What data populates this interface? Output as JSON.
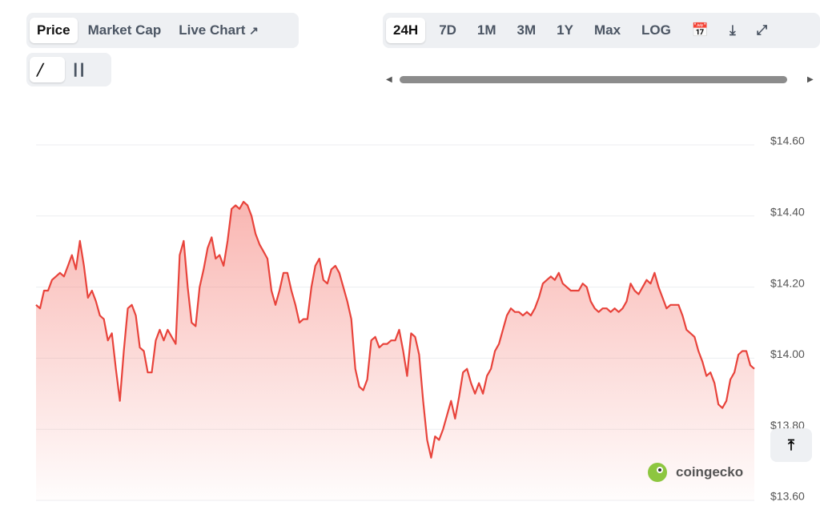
{
  "tabs": [
    "Price",
    "Market Cap",
    "Live Chart"
  ],
  "ranges": [
    "24H",
    "7D",
    "1M",
    "3M",
    "1Y",
    "Max",
    "LOG"
  ],
  "watermark": "coingecko",
  "chart_data": {
    "type": "line",
    "series": [
      {
        "color": "#e8433b",
        "values": [
          14.15,
          14.14,
          14.19,
          14.19,
          14.22,
          14.23,
          14.24,
          14.23,
          14.26,
          14.29,
          14.25,
          14.33,
          14.26,
          14.17,
          14.19,
          14.16,
          14.12,
          14.11,
          14.05,
          14.07,
          13.97,
          13.88,
          14.02,
          14.14,
          14.15,
          14.12,
          14.03,
          14.02,
          13.96,
          13.96,
          14.05,
          14.08,
          14.05,
          14.08,
          14.06,
          14.04,
          14.29,
          14.33,
          14.2,
          14.1,
          14.09,
          14.2,
          14.25,
          14.31,
          14.34,
          14.28,
          14.29,
          14.26,
          14.33,
          14.42,
          14.43,
          14.42,
          14.44,
          14.43,
          14.4,
          14.35,
          14.32,
          14.3,
          14.28,
          14.19,
          14.15,
          14.19,
          14.24,
          14.24,
          14.19,
          14.15,
          14.1,
          14.11,
          14.11,
          14.2,
          14.26,
          14.28,
          14.22,
          14.21,
          14.25,
          14.26,
          14.24,
          14.2,
          14.16,
          14.11,
          13.97,
          13.92,
          13.91,
          13.94,
          14.05,
          14.06,
          14.03,
          14.04,
          14.04,
          14.05,
          14.05,
          14.08,
          14.02,
          13.95,
          14.07,
          14.06,
          14.01,
          13.88,
          13.77,
          13.72,
          13.78,
          13.77,
          13.8,
          13.84,
          13.88,
          13.83,
          13.89,
          13.96,
          13.97,
          13.93,
          13.9,
          13.93,
          13.9,
          13.95,
          13.97,
          14.02,
          14.04,
          14.08,
          14.12,
          14.14,
          14.13,
          14.13,
          14.12,
          14.13,
          14.12,
          14.14,
          14.17,
          14.21,
          14.22,
          14.23,
          14.22,
          14.24,
          14.21,
          14.2,
          14.19,
          14.19,
          14.19,
          14.21,
          14.2,
          14.16,
          14.14,
          14.13,
          14.14,
          14.14,
          14.13,
          14.14,
          14.13,
          14.14,
          14.16,
          14.21,
          14.19,
          14.18,
          14.2,
          14.22,
          14.21,
          14.24,
          14.2,
          14.17,
          14.14,
          14.15,
          14.15,
          14.15,
          14.12,
          14.08,
          14.07,
          14.06,
          14.02,
          13.99,
          13.95,
          13.96,
          13.93,
          13.87,
          13.86,
          13.88,
          13.94,
          13.96,
          14.01,
          14.02,
          14.02,
          13.98,
          13.97
        ]
      }
    ],
    "ylim": [
      13.6,
      14.6
    ],
    "yticks": [
      {
        "value": 13.6,
        "label": "$13.60"
      },
      {
        "value": 13.8,
        "label": "$13.80"
      },
      {
        "value": 14.0,
        "label": "$14.00"
      },
      {
        "value": 14.2,
        "label": "$14.20"
      },
      {
        "value": 14.4,
        "label": "$14.40"
      },
      {
        "value": 14.6,
        "label": "$14.60"
      }
    ],
    "grid": true
  }
}
